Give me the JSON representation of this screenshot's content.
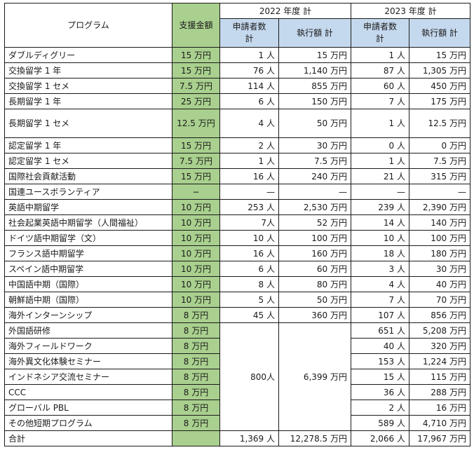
{
  "header": {
    "program": "プログラム",
    "support_amount": "支援金額",
    "year2022": "2022 年度 計",
    "year2023": "2023 年度 計",
    "applicants": "申請者数計",
    "applicants_line1": "申請者数",
    "applicants_line2": "計",
    "executed": "執行額 計"
  },
  "rows": [
    {
      "program": "ダブルディグリー",
      "support": "15 万円",
      "a2022": "1 人",
      "e2022": "15 万円",
      "a2023": "1 人",
      "e2023": "15 万円"
    },
    {
      "program": "交換留学 1 年",
      "support": "15 万円",
      "a2022": "76 人",
      "e2022": "1,140 万円",
      "a2023": "87 人",
      "e2023": "1,305 万円"
    },
    {
      "program": "交換留学 1 セメ",
      "support": "7.5 万円",
      "a2022": "114 人",
      "e2022": "855 万円",
      "a2023": "60 人",
      "e2023": "450 万円"
    },
    {
      "program": "長期留学 1 年",
      "support": "25 万円",
      "a2022": "6 人",
      "e2022": "150 万円",
      "a2023": "7 人",
      "e2023": "175 万円"
    },
    {
      "program": "長期留学 1 セメ",
      "support": "12.5 万円",
      "a2022": "4 人",
      "e2022": "50 万円",
      "a2023": "1 人",
      "e2023": "12.5 万円"
    },
    {
      "program": "認定留学 1 年",
      "support": "15 万円",
      "a2022": "2 人",
      "e2022": "30 万円",
      "a2023": "0 人",
      "e2023": "0 万円"
    },
    {
      "program": "認定留学 1 セメ",
      "support": "7.5 万円",
      "a2022": "1 人",
      "e2022": "7.5 万円",
      "a2023": "1 人",
      "e2023": "7.5 万円"
    },
    {
      "program": "国際社会貢献活動",
      "support": "15 万円",
      "a2022": "16 人",
      "e2022": "240 万円",
      "a2023": "21 人",
      "e2023": "315 万円"
    },
    {
      "program": "国連ユースボランティア",
      "support": "−",
      "a2022": "—",
      "e2022": "—",
      "a2023": "—",
      "e2023": "—"
    },
    {
      "program": "英語中期留学",
      "support": "10 万円",
      "a2022": "253 人",
      "e2022": "2,530 万円",
      "a2023": "239 人",
      "e2023": "2,390 万円"
    },
    {
      "program": "社会起業英語中期留学（人間福祉）",
      "support": "10 万円",
      "a2022": "7人",
      "e2022": "52 万円",
      "a2023": "14 人",
      "e2023": "140 万円"
    },
    {
      "program": "ドイツ語中期留学（文）",
      "support": "10 万円",
      "a2022": "10 人",
      "e2022": "100 万円",
      "a2023": "10 人",
      "e2023": "100 万円"
    },
    {
      "program": "フランス語中期留学",
      "support": "10 万円",
      "a2022": "16 人",
      "e2022": "160 万円",
      "a2023": "18 人",
      "e2023": "180 万円"
    },
    {
      "program": "スペイン語中期留学",
      "support": "10 万円",
      "a2022": "6 人",
      "e2022": "60 万円",
      "a2023": "3 人",
      "e2023": "30 万円"
    },
    {
      "program": "中国語中期（国際）",
      "support": "10 万円",
      "a2022": "8 人",
      "e2022": "80 万円",
      "a2023": "4 人",
      "e2023": "40 万円"
    },
    {
      "program": "朝鮮語中期（国際）",
      "support": "10 万円",
      "a2022": "5 人",
      "e2022": "50 万円",
      "a2023": "7 人",
      "e2023": "70 万円"
    },
    {
      "program": "海外インターンシップ",
      "support": "8 万円",
      "a2022": "45 人",
      "e2022": "360 万円",
      "a2023": "107 人",
      "e2023": "856 万円"
    }
  ],
  "short_group": {
    "a2022": "800人",
    "e2022": "6,399 万円",
    "rows": [
      {
        "program": "外国語研修",
        "support": "8 万円",
        "a2023": "651 人",
        "e2023": "5,208 万円"
      },
      {
        "program": "海外フィールドワーク",
        "support": "8 万円",
        "a2023": "40 人",
        "e2023": "320 万円"
      },
      {
        "program": "海外異文化体験セミナー",
        "support": "8 万円",
        "a2023": "153 人",
        "e2023": "1,224 万円"
      },
      {
        "program": "インドネシア交流セミナー",
        "support": "8 万円",
        "a2023": "15 人",
        "e2023": "115 万円"
      },
      {
        "program": "CCC",
        "support": "8 万円",
        "a2023": "36 人",
        "e2023": "288 万円"
      },
      {
        "program": "グローバル PBL",
        "support": "8 万円",
        "a2023": "2 人",
        "e2023": "16 万円"
      },
      {
        "program": "その他短期プログラム",
        "support": "8 万円",
        "a2023": "589 人",
        "e2023": "4,710 万円"
      }
    ]
  },
  "total": {
    "label": "合計",
    "support": "",
    "a2022": "1,369 人",
    "e2022": "12,278.5 万円",
    "a2023": "2,066 人",
    "e2023": "17,967 万円"
  },
  "colors": {
    "support_column": "#a9d08e",
    "subheader": "#c5d9ee",
    "border": "#1a1a1a"
  }
}
